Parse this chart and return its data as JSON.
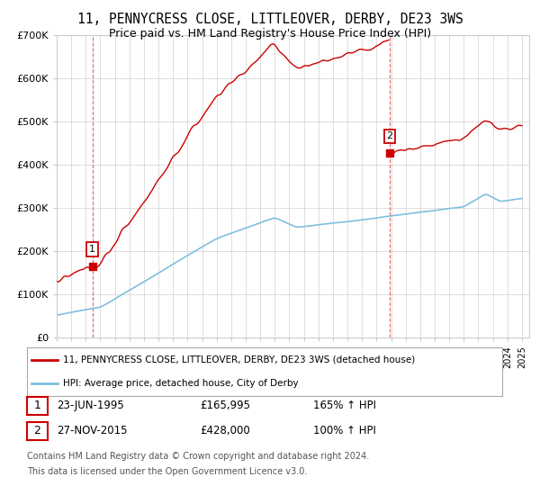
{
  "title": "11, PENNYCRESS CLOSE, LITTLEOVER, DERBY, DE23 3WS",
  "subtitle": "Price paid vs. HM Land Registry's House Price Index (HPI)",
  "ylim": [
    0,
    700000
  ],
  "yticks": [
    0,
    100000,
    200000,
    300000,
    400000,
    500000,
    600000,
    700000
  ],
  "ytick_labels": [
    "£0",
    "£100K",
    "£200K",
    "£300K",
    "£400K",
    "£500K",
    "£600K",
    "£700K"
  ],
  "hpi_color": "#7fbfdf",
  "price_color": "#cc0000",
  "t1_year": 1995.46,
  "t1_price": 165995,
  "t2_year": 2015.9,
  "t2_price": 428000,
  "legend_label_price": "11, PENNYCRESS CLOSE, LITTLEOVER, DERBY, DE23 3WS (detached house)",
  "legend_label_hpi": "HPI: Average price, detached house, City of Derby",
  "row1": [
    "1",
    "23-JUN-1995",
    "£165,995",
    "165% ↑ HPI"
  ],
  "row2": [
    "2",
    "27-NOV-2015",
    "£428,000",
    "100% ↑ HPI"
  ],
  "footnote1": "Contains HM Land Registry data © Crown copyright and database right 2024.",
  "footnote2": "This data is licensed under the Open Government Licence v3.0.",
  "background_color": "#ffffff",
  "grid_color": "#d0d0d0"
}
